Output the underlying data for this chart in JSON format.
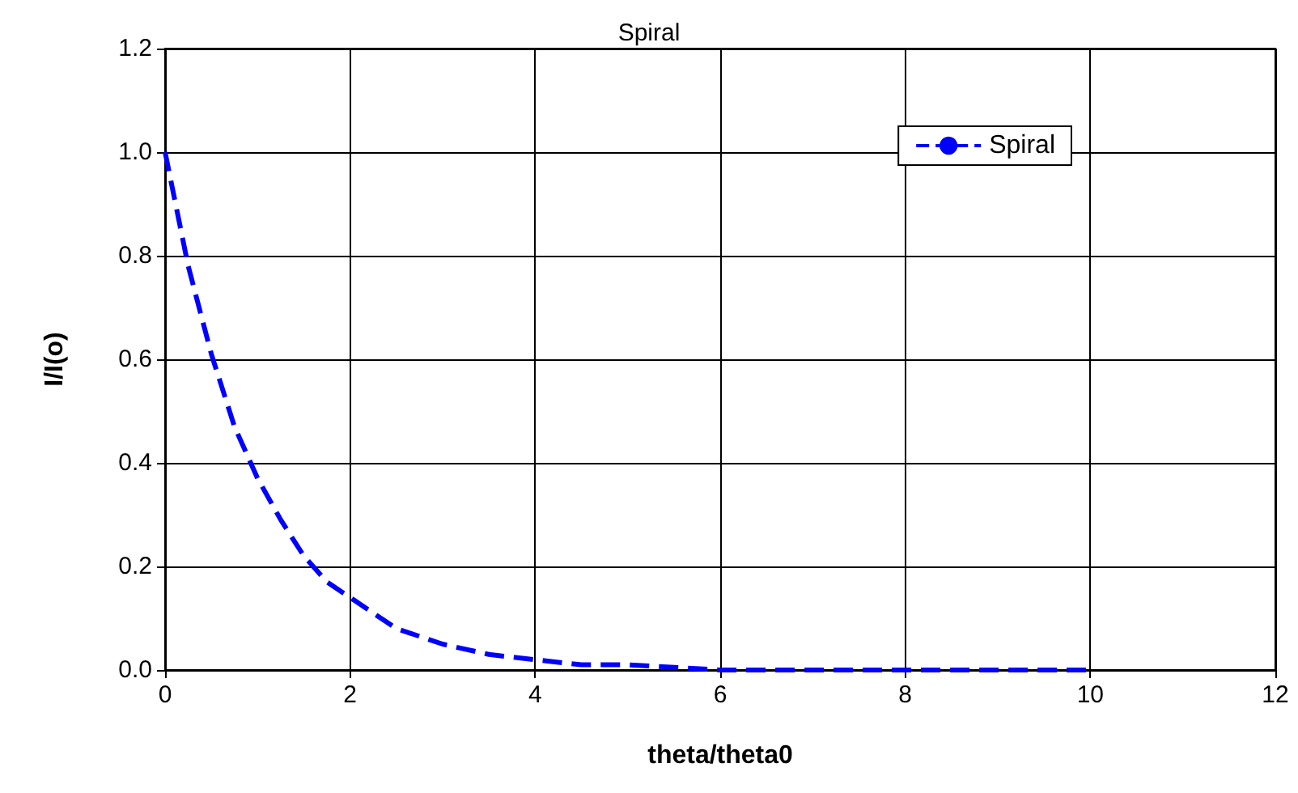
{
  "chart_data": {
    "type": "line",
    "title": "Spiral",
    "xlabel": "theta/theta0",
    "ylabel": "I/I(o)",
    "x": [
      0,
      0.25,
      0.5,
      0.75,
      1,
      1.25,
      1.5,
      1.75,
      2,
      2.5,
      3,
      3.5,
      4,
      4.5,
      5,
      6,
      7,
      8,
      9,
      10
    ],
    "series": [
      {
        "name": "Spiral",
        "color": "#0000ff",
        "values": [
          1.0,
          0.78,
          0.61,
          0.47,
          0.37,
          0.29,
          0.22,
          0.17,
          0.14,
          0.08,
          0.05,
          0.03,
          0.02,
          0.01,
          0.01,
          0.0,
          0.0,
          0.0,
          0.0,
          0.0
        ]
      }
    ],
    "xlim": [
      0,
      12
    ],
    "xticks": [
      0,
      2,
      4,
      6,
      8,
      10,
      12
    ],
    "ylim": [
      0,
      1.2
    ],
    "yticks": [
      {
        "value": 0,
        "label": "0.0"
      },
      {
        "value": 0.2,
        "label": "0.2"
      },
      {
        "value": 0.4,
        "label": "0.4"
      },
      {
        "value": 0.6,
        "label": "0.6"
      },
      {
        "value": 0.8,
        "label": "0.8"
      },
      {
        "value": 1,
        "label": "1.0"
      },
      {
        "value": 1.2,
        "label": "1.2"
      }
    ],
    "grid": true,
    "legend": "top right",
    "marker": "none",
    "line_style": "dashed"
  }
}
